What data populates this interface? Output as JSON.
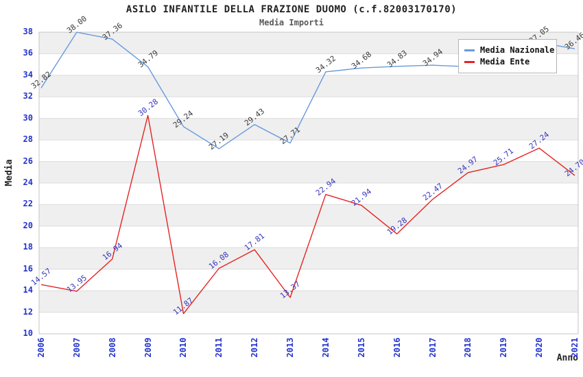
{
  "header": {
    "title": "ASILO INFANTILE DELLA FRAZIONE DUOMO (c.f.82003170170)",
    "subtitle": "Media Importi"
  },
  "axes": {
    "y_label": "Media",
    "x_label": "Anno"
  },
  "colors": {
    "axis_tick_text": "#2233cc",
    "band_gray": "#efefef",
    "gridline": "#dcdcdc",
    "plot_border": "#c4c4c4",
    "nazionale_line": "#6699dd",
    "ente_line": "#e62222",
    "nazionale_point_label": "#3a3a3a",
    "ente_point_label": "#3636bb"
  },
  "chart_data": {
    "type": "line",
    "title": "ASILO INFANTILE DELLA FRAZIONE DUOMO (c.f.82003170170)",
    "subtitle": "Media Importi",
    "xlabel": "Anno",
    "ylabel": "Media",
    "ylim": [
      10,
      38
    ],
    "yticks": [
      10,
      12,
      14,
      16,
      18,
      20,
      22,
      24,
      26,
      28,
      30,
      32,
      34,
      36,
      38
    ],
    "grid": "horizontal-lines-with-alternating-gray-bands",
    "legend_position": "top-right-inside",
    "categories": [
      "2006",
      "2007",
      "2008",
      "2009",
      "2010",
      "2011",
      "2012",
      "2013",
      "2014",
      "2015",
      "2016",
      "2017",
      "2018",
      "2019",
      "2020",
      "2021"
    ],
    "series": [
      {
        "name": "Media Nazionale",
        "color": "#6699dd",
        "label_color": "#3a3a3a",
        "values": [
          32.82,
          38.0,
          37.36,
          34.79,
          29.24,
          27.19,
          29.43,
          27.71,
          34.32,
          34.68,
          34.83,
          34.94,
          34.8,
          34.6,
          37.05,
          36.46
        ],
        "labels": [
          "32.82",
          "38.00",
          "37.36",
          "34.79",
          "29.24",
          "27.19",
          "29.43",
          "27.71",
          "34.32",
          "34.68",
          "34.83",
          "34.94",
          null,
          null,
          "37.05",
          "36.46"
        ],
        "note_hidden_labels": "2018 and 2019 value labels are covered by the legend box; values estimated from line position"
      },
      {
        "name": "Media Ente",
        "color": "#e62222",
        "label_color": "#3636bb",
        "values": [
          14.57,
          13.95,
          16.94,
          30.28,
          11.87,
          16.08,
          17.81,
          13.37,
          22.94,
          21.94,
          19.28,
          22.47,
          24.97,
          25.71,
          27.24,
          24.7
        ],
        "labels": [
          "14.57",
          "13.95",
          "16.94",
          "30.28",
          "11.87",
          "16.08",
          "17.81",
          "13.37",
          "22.94",
          "21.94",
          "19.28",
          "22.47",
          "24.97",
          "25.71",
          "27.24",
          "24.70"
        ]
      }
    ]
  }
}
